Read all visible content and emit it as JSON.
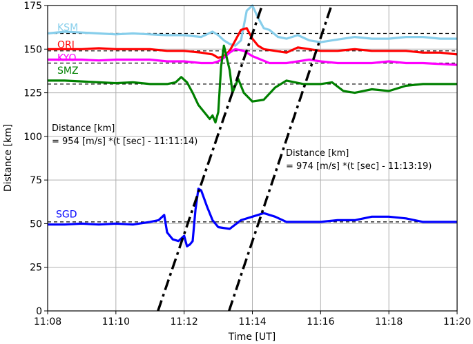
{
  "chart_data": {
    "type": "line",
    "title": "",
    "xlabel": "Time [UT]",
    "ylabel": "Distance [km]",
    "xlim": [
      "11:08",
      "11:20"
    ],
    "ylim": [
      0,
      175
    ],
    "x_ticks": [
      "11:08",
      "11:10",
      "11:12",
      "11:14",
      "11:16",
      "11:18",
      "11:20"
    ],
    "y_ticks": [
      0,
      25,
      50,
      75,
      100,
      125,
      150,
      175
    ],
    "grid": true,
    "series": [
      {
        "name": "KSM",
        "color": "#87ceeb",
        "baseline_km": 159,
        "points": [
          [
            "11:08",
            159
          ],
          [
            "11:08:30",
            160
          ],
          [
            "11:09",
            159.5
          ],
          [
            "11:09:30",
            159
          ],
          [
            "11:10",
            158.5
          ],
          [
            "11:10:30",
            159
          ],
          [
            "11:11",
            158.5
          ],
          [
            "11:11:30",
            158
          ],
          [
            "11:12",
            158
          ],
          [
            "11:12:30",
            157
          ],
          [
            "11:12:50",
            160
          ],
          [
            "11:13",
            158
          ],
          [
            "11:13:10",
            155
          ],
          [
            "11:13:20",
            153
          ],
          [
            "11:13:30",
            152
          ],
          [
            "11:13:40",
            155
          ],
          [
            "11:13:50",
            172
          ],
          [
            "11:14",
            175
          ],
          [
            "11:14:10",
            168
          ],
          [
            "11:14:20",
            162
          ],
          [
            "11:14:30",
            161
          ],
          [
            "11:14:45",
            157
          ],
          [
            "11:15",
            156
          ],
          [
            "11:15:20",
            158
          ],
          [
            "11:15:40",
            155
          ],
          [
            "11:16",
            154
          ],
          [
            "11:16:20",
            155
          ],
          [
            "11:16:40",
            156
          ],
          [
            "11:17",
            157
          ],
          [
            "11:17:30",
            156
          ],
          [
            "11:18",
            156
          ],
          [
            "11:18:30",
            157
          ],
          [
            "11:19",
            157
          ],
          [
            "11:19:30",
            156
          ],
          [
            "11:20",
            156
          ]
        ]
      },
      {
        "name": "ORI",
        "color": "#ff0000",
        "baseline_km": 149,
        "points": [
          [
            "11:08",
            150
          ],
          [
            "11:08:30",
            150
          ],
          [
            "11:09",
            150
          ],
          [
            "11:09:30",
            150.5
          ],
          [
            "11:10",
            150
          ],
          [
            "11:10:30",
            150
          ],
          [
            "11:11",
            150
          ],
          [
            "11:11:30",
            149
          ],
          [
            "11:12",
            149
          ],
          [
            "11:12:30",
            148
          ],
          [
            "11:12:50",
            147
          ],
          [
            "11:13",
            145
          ],
          [
            "11:13:10",
            146
          ],
          [
            "11:13:20",
            149
          ],
          [
            "11:13:30",
            155
          ],
          [
            "11:13:40",
            161
          ],
          [
            "11:13:50",
            162
          ],
          [
            "11:14",
            156
          ],
          [
            "11:14:10",
            152
          ],
          [
            "11:14:20",
            150
          ],
          [
            "11:14:40",
            149
          ],
          [
            "11:15",
            148
          ],
          [
            "11:15:20",
            151
          ],
          [
            "11:15:40",
            150
          ],
          [
            "11:16",
            149
          ],
          [
            "11:16:30",
            149
          ],
          [
            "11:17",
            150
          ],
          [
            "11:17:30",
            149
          ],
          [
            "11:18",
            149
          ],
          [
            "11:18:30",
            149
          ],
          [
            "11:19",
            148
          ],
          [
            "11:19:30",
            148
          ],
          [
            "11:20",
            147
          ]
        ]
      },
      {
        "name": "KYO",
        "color": "#ff00ff",
        "baseline_km": 142,
        "points": [
          [
            "11:08",
            144
          ],
          [
            "11:08:30",
            144
          ],
          [
            "11:09",
            144
          ],
          [
            "11:09:30",
            143.5
          ],
          [
            "11:10",
            144
          ],
          [
            "11:10:30",
            144
          ],
          [
            "11:11",
            144
          ],
          [
            "11:11:30",
            143
          ],
          [
            "11:12",
            143
          ],
          [
            "11:12:30",
            142
          ],
          [
            "11:12:50",
            142
          ],
          [
            "11:13",
            143
          ],
          [
            "11:13:10",
            145
          ],
          [
            "11:13:20",
            148
          ],
          [
            "11:13:30",
            150
          ],
          [
            "11:13:45",
            149
          ],
          [
            "11:14",
            146
          ],
          [
            "11:14:15",
            144
          ],
          [
            "11:14:30",
            142
          ],
          [
            "11:15",
            142
          ],
          [
            "11:15:20",
            143
          ],
          [
            "11:15:40",
            144
          ],
          [
            "11:16",
            143
          ],
          [
            "11:16:30",
            142
          ],
          [
            "11:17",
            142
          ],
          [
            "11:17:30",
            142
          ],
          [
            "11:18",
            143
          ],
          [
            "11:18:30",
            142
          ],
          [
            "11:19",
            142
          ],
          [
            "11:19:30",
            141.5
          ],
          [
            "11:20",
            141
          ]
        ]
      },
      {
        "name": "SMZ",
        "color": "#008000",
        "baseline_km": 130,
        "points": [
          [
            "11:08",
            132
          ],
          [
            "11:08:30",
            132
          ],
          [
            "11:09",
            131.5
          ],
          [
            "11:09:30",
            131
          ],
          [
            "11:10",
            130.5
          ],
          [
            "11:10:30",
            131
          ],
          [
            "11:11",
            130
          ],
          [
            "11:11:30",
            130
          ],
          [
            "11:11:45",
            131
          ],
          [
            "11:11:55",
            134
          ],
          [
            "11:12:05",
            131
          ],
          [
            "11:12:15",
            125
          ],
          [
            "11:12:25",
            118
          ],
          [
            "11:12:35",
            114
          ],
          [
            "11:12:45",
            110
          ],
          [
            "11:12:50",
            112
          ],
          [
            "11:12:55",
            108
          ],
          [
            "11:13",
            114
          ],
          [
            "11:13:05",
            140
          ],
          [
            "11:13:10",
            152
          ],
          [
            "11:13:15",
            145
          ],
          [
            "11:13:20",
            138
          ],
          [
            "11:13:25",
            125
          ],
          [
            "11:13:35",
            133
          ],
          [
            "11:13:45",
            125
          ],
          [
            "11:14",
            120
          ],
          [
            "11:14:20",
            121
          ],
          [
            "11:14:40",
            128
          ],
          [
            "11:15",
            132
          ],
          [
            "11:15:30",
            130
          ],
          [
            "11:16",
            130
          ],
          [
            "11:16:20",
            131
          ],
          [
            "11:16:40",
            126
          ],
          [
            "11:17",
            125
          ],
          [
            "11:17:30",
            127
          ],
          [
            "11:18",
            126
          ],
          [
            "11:18:30",
            129
          ],
          [
            "11:19",
            130
          ],
          [
            "11:19:30",
            130
          ],
          [
            "11:20",
            130
          ]
        ]
      },
      {
        "name": "SGD",
        "color": "#0000ff",
        "baseline_km": 51,
        "points": [
          [
            "11:08",
            49.5
          ],
          [
            "11:08:30",
            49.5
          ],
          [
            "11:09",
            50
          ],
          [
            "11:09:30",
            49.5
          ],
          [
            "11:10",
            50
          ],
          [
            "11:10:30",
            49.5
          ],
          [
            "11:11",
            51
          ],
          [
            "11:11:15",
            52
          ],
          [
            "11:11:25",
            55
          ],
          [
            "11:11:30",
            45
          ],
          [
            "11:11:40",
            41
          ],
          [
            "11:11:50",
            40
          ],
          [
            "11:12",
            43
          ],
          [
            "11:12:05",
            37
          ],
          [
            "11:12:10",
            38
          ],
          [
            "11:12:15",
            40
          ],
          [
            "11:12:20",
            58
          ],
          [
            "11:12:25",
            70
          ],
          [
            "11:12:30",
            69
          ],
          [
            "11:12:40",
            60
          ],
          [
            "11:12:50",
            52
          ],
          [
            "11:13",
            48
          ],
          [
            "11:13:20",
            47
          ],
          [
            "11:13:40",
            52
          ],
          [
            "11:14",
            54
          ],
          [
            "11:14:20",
            56
          ],
          [
            "11:14:40",
            54
          ],
          [
            "11:15",
            51
          ],
          [
            "11:15:30",
            51
          ],
          [
            "11:16",
            51
          ],
          [
            "11:16:30",
            52
          ],
          [
            "11:17",
            52
          ],
          [
            "11:17:30",
            54
          ],
          [
            "11:18",
            54
          ],
          [
            "11:18:30",
            53
          ],
          [
            "11:19",
            51
          ],
          [
            "11:19:30",
            51
          ],
          [
            "11:20",
            51
          ]
        ]
      },
      {
        "name": "",
        "style": "dash-dot",
        "color": "#000000",
        "points": [
          [
            "11:11:14",
            0
          ],
          [
            "11:14:17",
            175
          ]
        ]
      },
      {
        "name": "",
        "style": "dash-dot",
        "color": "#000000",
        "points": [
          [
            "11:13:19",
            0
          ],
          [
            "11:16:19",
            175
          ]
        ]
      }
    ],
    "annotations": [
      {
        "text_line1": "Distance [km]",
        "text_line2": "= 954 [m/s] *(t [sec] - 11:11:14)",
        "anchor": "left, near y=100"
      },
      {
        "text_line1": "Distance [km]",
        "text_line2": "= 974 [m/s] *(t [sec] - 11:13:19)",
        "anchor": "center-right, near y=80"
      }
    ]
  }
}
